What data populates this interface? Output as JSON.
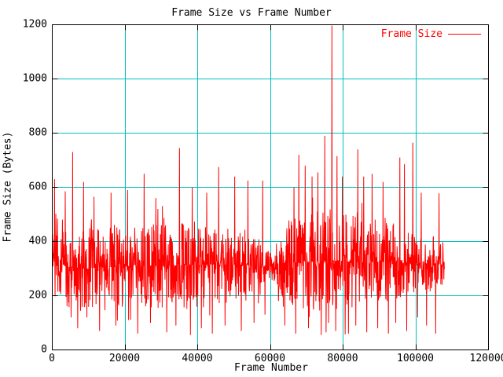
{
  "chart_data": {
    "type": "line",
    "title": "Frame Size vs Frame Number",
    "xlabel": "Frame Number",
    "ylabel": "Frame Size (Bytes)",
    "xlim": [
      0,
      120000
    ],
    "ylim": [
      0,
      1200
    ],
    "xticks": [
      0,
      20000,
      40000,
      60000,
      80000,
      100000,
      120000
    ],
    "yticks": [
      0,
      200,
      400,
      600,
      800,
      1000,
      1200
    ],
    "grid": true,
    "grid_color": "#00c0c0",
    "frame_color": "#000000",
    "background": "#ffffff",
    "legend": {
      "position": "top-right",
      "entries": [
        {
          "label": "Frame Size",
          "color": "#ff0000"
        }
      ]
    },
    "series": [
      {
        "name": "Frame Size",
        "color": "#ff0000",
        "x_start": 0,
        "x_end": 107900,
        "sample_step": 70,
        "seed": 20240,
        "baseline": 310,
        "envelope": [
          [
            0,
            210,
            450
          ],
          [
            3000,
            160,
            460
          ],
          [
            8000,
            140,
            460
          ],
          [
            15000,
            140,
            470
          ],
          [
            22000,
            170,
            450
          ],
          [
            30000,
            150,
            470
          ],
          [
            40000,
            150,
            480
          ],
          [
            47000,
            170,
            460
          ],
          [
            55000,
            200,
            430
          ],
          [
            59500,
            250,
            370
          ],
          [
            61500,
            255,
            355
          ],
          [
            63500,
            170,
            470
          ],
          [
            70000,
            150,
            500
          ],
          [
            76000,
            140,
            520
          ],
          [
            83000,
            150,
            500
          ],
          [
            93000,
            170,
            480
          ],
          [
            100000,
            215,
            420
          ],
          [
            104000,
            205,
            430
          ],
          [
            107900,
            230,
            400
          ]
        ],
        "spikes": [
          [
            650,
            630
          ],
          [
            3600,
            585
          ],
          [
            5600,
            730
          ],
          [
            8600,
            620
          ],
          [
            11500,
            565
          ],
          [
            16200,
            580
          ],
          [
            20700,
            590
          ],
          [
            25300,
            650
          ],
          [
            28500,
            560
          ],
          [
            35000,
            745
          ],
          [
            38500,
            600
          ],
          [
            42500,
            580
          ],
          [
            45800,
            675
          ],
          [
            50200,
            640
          ],
          [
            53800,
            625
          ],
          [
            57900,
            625
          ],
          [
            66500,
            600
          ],
          [
            67800,
            720
          ],
          [
            69600,
            680
          ],
          [
            71500,
            640
          ],
          [
            73100,
            655
          ],
          [
            75000,
            790
          ],
          [
            76900,
            1199
          ],
          [
            78300,
            715
          ],
          [
            79800,
            640
          ],
          [
            84100,
            740
          ],
          [
            85700,
            640
          ],
          [
            88000,
            650
          ],
          [
            91000,
            620
          ],
          [
            95600,
            710
          ],
          [
            96900,
            685
          ],
          [
            99200,
            765
          ],
          [
            101500,
            580
          ],
          [
            106400,
            578
          ]
        ],
        "dips": [
          [
            7000,
            80
          ],
          [
            9500,
            120
          ],
          [
            13000,
            70
          ],
          [
            17500,
            90
          ],
          [
            21000,
            110
          ],
          [
            23500,
            60
          ],
          [
            27000,
            100
          ],
          [
            31500,
            65
          ],
          [
            34000,
            90
          ],
          [
            38000,
            55
          ],
          [
            41000,
            80
          ],
          [
            44000,
            60
          ],
          [
            47500,
            90
          ],
          [
            52000,
            70
          ],
          [
            55500,
            100
          ],
          [
            58500,
            130
          ],
          [
            64000,
            90
          ],
          [
            67000,
            60
          ],
          [
            70500,
            80
          ],
          [
            74000,
            55
          ],
          [
            76000,
            100
          ],
          [
            78000,
            70
          ],
          [
            81500,
            60
          ],
          [
            83500,
            90
          ],
          [
            86500,
            65
          ],
          [
            89500,
            80
          ],
          [
            92500,
            60
          ],
          [
            94500,
            100
          ],
          [
            97500,
            70
          ],
          [
            100500,
            120
          ],
          [
            103000,
            90
          ],
          [
            105500,
            60
          ]
        ]
      }
    ]
  }
}
